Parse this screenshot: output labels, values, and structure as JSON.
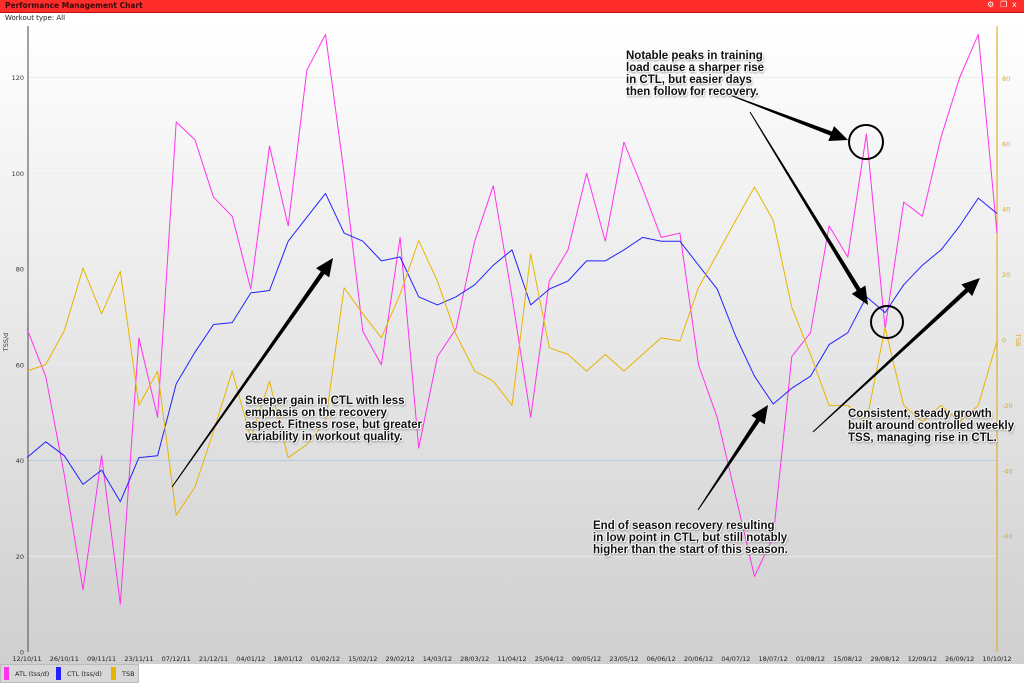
{
  "window": {
    "title": "Performance Management Chart",
    "icons": [
      "gear-icon",
      "restore-icon",
      "close-icon"
    ],
    "close_label": "x"
  },
  "filter": {
    "label": "Workout type: All"
  },
  "legend": [
    {
      "label": "ATL (tss/d)",
      "color": "#ff33ee"
    },
    {
      "label": "CTL (tss/d)",
      "color": "#2222ff"
    },
    {
      "label": "TSB",
      "color": "#e8b400"
    }
  ],
  "annotations": [
    {
      "text": "Steeper gain in CTL with less\nemphasis on the recovery\naspect. Fitness rose, but greater\nvariability in workout quality."
    },
    {
      "text": "Notable peaks in training\nload cause a sharper rise\nin CTL, but easier days\nthen follow for recovery."
    },
    {
      "text": "End of season recovery resulting\nin low point in CTL, but still notably\nhigher than the start of this season."
    },
    {
      "text": "Consistent, steady growth\nbuilt around controlled weekly\nTSS, managing rise in CTL."
    }
  ],
  "chart_data": {
    "type": "line",
    "title": "",
    "ylabel": "TSS/d",
    "y2label": "TSB",
    "ylim": [
      0,
      130
    ],
    "y2lim": [
      -68,
      94
    ],
    "yticks": [
      0,
      20,
      40,
      60,
      80,
      100,
      120
    ],
    "y2ticks": [
      -60,
      -40,
      -20,
      0,
      20,
      40,
      60,
      80
    ],
    "xtick_labels": [
      "12/10/11",
      "26/10/11",
      "09/11/11",
      "23/11/11",
      "07/12/11",
      "21/12/11",
      "04/01/12",
      "18/01/12",
      "01/02/12",
      "15/02/12",
      "29/02/12",
      "14/03/12",
      "28/03/12",
      "11/04/12",
      "25/04/12",
      "09/05/12",
      "23/05/12",
      "06/06/12",
      "20/06/12",
      "04/07/12",
      "18/07/12",
      "01/08/12",
      "15/08/12",
      "29/08/12",
      "12/09/12",
      "26/09/12",
      "10/10/12"
    ],
    "grid": true,
    "legend_position": "bottom-left",
    "x": [
      "12/10/11",
      "19/10/11",
      "26/10/11",
      "02/11/11",
      "09/11/11",
      "16/11/11",
      "23/11/11",
      "30/11/11",
      "07/12/11",
      "14/12/11",
      "21/12/11",
      "28/12/11",
      "04/01/12",
      "11/01/12",
      "18/01/12",
      "25/01/12",
      "01/02/12",
      "08/02/12",
      "15/02/12",
      "22/02/12",
      "29/02/12",
      "07/03/12",
      "14/03/12",
      "21/03/12",
      "28/03/12",
      "04/04/12",
      "11/04/12",
      "18/04/12",
      "25/04/12",
      "02/05/12",
      "09/05/12",
      "16/05/12",
      "23/05/12",
      "30/05/12",
      "06/06/12",
      "13/06/12",
      "20/06/12",
      "27/06/12",
      "04/07/12",
      "11/07/12",
      "18/07/12",
      "25/07/12",
      "01/08/12",
      "08/08/12",
      "15/08/12",
      "22/08/12",
      "29/08/12",
      "05/09/12",
      "12/09/12",
      "19/09/12",
      "26/09/12",
      "03/10/12",
      "10/10/12"
    ],
    "series": [
      {
        "name": "ATL (tss/d)",
        "axis": "left",
        "color": "#ff33ee",
        "values": [
          67.5,
          57.6,
          37,
          13,
          41,
          10,
          65.6,
          49,
          110.7,
          107,
          95,
          91,
          75.8,
          105.7,
          89,
          121.5,
          129,
          100,
          67,
          60,
          86.6,
          42.6,
          61.7,
          67.5,
          85.8,
          97.4,
          74.2,
          49,
          77.5,
          84,
          100,
          85.8,
          106.5,
          96.8,
          86.6,
          87.5,
          60,
          49,
          32.4,
          15.8,
          24,
          61.7,
          66.7,
          89,
          82.5,
          108.2,
          67.5,
          94,
          91,
          107.5,
          120,
          129,
          87.5
        ]
      },
      {
        "name": "CTL (tss/d)",
        "axis": "left",
        "color": "#2222ff",
        "values": [
          40.6,
          43.9,
          41,
          35,
          38,
          31.4,
          40.6,
          41,
          56,
          62.6,
          68.4,
          68.8,
          75,
          75.5,
          85.8,
          90.8,
          95.8,
          87.5,
          85.8,
          81.7,
          82.5,
          74.2,
          72.5,
          74.2,
          76.7,
          80.8,
          84,
          72.5,
          75.8,
          77.5,
          81.7,
          81.7,
          84,
          86.6,
          85.8,
          85.8,
          80.8,
          75.8,
          65.9,
          57.6,
          51.8,
          55.1,
          57.6,
          64.2,
          66.7,
          74.2,
          70.9,
          76.7,
          80.8,
          84,
          89,
          94.8,
          91.6
        ]
      },
      {
        "name": "TSB",
        "axis": "right",
        "color": "#e8b400",
        "values": [
          -9.5,
          -7.5,
          2.8,
          22,
          8,
          21,
          -20,
          -9.5,
          -53.6,
          -45,
          -28,
          -9.5,
          -30,
          -12.6,
          -36,
          -32,
          -25,
          16,
          8,
          0.7,
          14,
          30.4,
          18,
          1.7,
          -9.5,
          -12.6,
          -20,
          26.3,
          -2.4,
          -4.4,
          -9.5,
          -4.4,
          -9.5,
          -4.4,
          0.7,
          -0.3,
          16,
          26.3,
          36.6,
          46.8,
          36.6,
          10,
          -4.4,
          -20,
          -20,
          -25,
          3.8,
          -20,
          -25,
          -20,
          -25,
          -20,
          -0.3
        ]
      }
    ]
  }
}
